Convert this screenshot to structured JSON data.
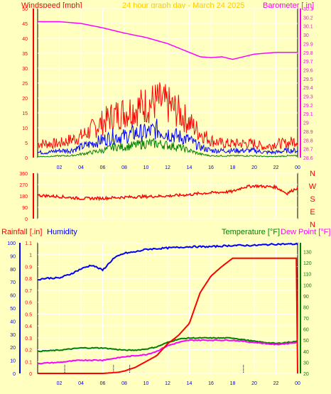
{
  "header": {
    "left_title": "Windspeed [mph]",
    "center_title": "24 hour graph day - March 24 2025",
    "right_title": "Barometer [ in]"
  },
  "bottom_header": {
    "rainfall": "Rainfall [.in]",
    "humidity": "Humidity",
    "temperature": "Temperature [°F]",
    "dewpoint": "Dew Point [°F]"
  },
  "direction_labels": [
    "N",
    "W",
    "S",
    "E",
    "N"
  ],
  "colors": {
    "background": "#ffffc0",
    "windspeed": "#ff0000",
    "wind_avg": "#0000ff",
    "wind_low": "#008000",
    "barometer": "#ff00ff",
    "direction": "#ff0000",
    "rainfall": "#ff0000",
    "humidity": "#0000ff",
    "temperature": "#008000",
    "dewpoint": "#ff00ff",
    "grid": "#ffffff"
  },
  "chart_data": [
    {
      "type": "line",
      "title": "24 hour graph day - March 24 2025",
      "x_ticks": [
        "02",
        "04",
        "06",
        "08",
        "10",
        "12",
        "14",
        "16",
        "18",
        "20",
        "22",
        "00"
      ],
      "y_left": {
        "label": "Windspeed [mph]",
        "ticks": [
          "0",
          "5",
          "10",
          "15",
          "20",
          "25",
          "30",
          "35",
          "40",
          "45",
          "50"
        ],
        "ylim": [
          0,
          50
        ]
      },
      "y_right": {
        "label": "Barometer [ in]",
        "ticks": [
          "28.6",
          "28.7",
          "28.8",
          "28.9",
          "29",
          "29.1",
          "29.2",
          "29.3",
          "29.4",
          "29.5",
          "29.6",
          "29.7",
          "29.8",
          "29.9",
          "30",
          "30.1",
          "30.2",
          "30.3"
        ],
        "ylim": [
          28.6,
          30.3
        ]
      },
      "series": [
        {
          "name": "Barometer [ in]",
          "axis": "right",
          "x": [
            0,
            2,
            4,
            6,
            8,
            10,
            12,
            14,
            15,
            16,
            17,
            18,
            19,
            20,
            22,
            24
          ],
          "values": [
            30.15,
            30.15,
            30.13,
            30.08,
            30.02,
            29.97,
            29.9,
            29.8,
            29.75,
            29.74,
            29.75,
            29.72,
            29.75,
            29.78,
            29.8,
            29.8
          ]
        },
        {
          "name": "Windspeed gust",
          "axis": "left",
          "x": [
            0,
            1,
            2,
            3,
            4,
            5,
            6,
            7,
            8,
            9,
            10,
            11,
            12,
            13,
            14,
            15,
            16,
            17,
            18,
            19,
            20,
            21,
            22,
            23,
            24
          ],
          "values": [
            4,
            4,
            4,
            5,
            6,
            8,
            10,
            12,
            13,
            14,
            15,
            16,
            15,
            13,
            10,
            7,
            5,
            4,
            4,
            4,
            4,
            3,
            4,
            4,
            5
          ]
        },
        {
          "name": "Windspeed average",
          "axis": "left",
          "x": [
            0,
            1,
            2,
            3,
            4,
            5,
            6,
            7,
            8,
            9,
            10,
            11,
            12,
            13,
            14,
            15,
            16,
            17,
            18,
            19,
            20,
            21,
            22,
            23,
            24
          ],
          "values": [
            1.5,
            1.5,
            2,
            2,
            3,
            4,
            5,
            6,
            6,
            7,
            7,
            8,
            7,
            6,
            5,
            3,
            2,
            2,
            2,
            2,
            2,
            1.5,
            1.5,
            2,
            2
          ]
        },
        {
          "name": "Windspeed low",
          "axis": "left",
          "x": [
            0,
            1,
            2,
            3,
            4,
            5,
            6,
            7,
            8,
            9,
            10,
            11,
            12,
            13,
            14,
            15,
            16,
            17,
            18,
            19,
            20,
            21,
            22,
            23,
            24
          ],
          "values": [
            0.3,
            0.3,
            0.5,
            0.5,
            1,
            1.5,
            2,
            3,
            3,
            3.5,
            4,
            4,
            3.5,
            3,
            2,
            1,
            0.5,
            0.5,
            0.5,
            0.5,
            0.5,
            0.3,
            0.3,
            0.5,
            0.5
          ]
        }
      ]
    },
    {
      "type": "line",
      "y_left": {
        "ticks": [
          "0",
          "90",
          "180",
          "270",
          "360"
        ],
        "ylim": [
          0,
          360
        ]
      },
      "y_right_labels": [
        "N",
        "W",
        "S",
        "E",
        "N"
      ],
      "series": [
        {
          "name": "Wind direction",
          "x": [
            0,
            2,
            4,
            6,
            8,
            10,
            12,
            14,
            15,
            16,
            18,
            19,
            20,
            22,
            23,
            24
          ],
          "values": [
            185,
            175,
            160,
            162,
            170,
            175,
            180,
            190,
            200,
            205,
            215,
            250,
            260,
            250,
            200,
            245
          ]
        }
      ]
    },
    {
      "type": "line",
      "x_ticks": [
        "02",
        "04",
        "06",
        "08",
        "10",
        "12",
        "14",
        "16",
        "18",
        "20",
        "22",
        "00"
      ],
      "y_left": {
        "label": "Humidity",
        "ticks": [
          "0",
          "10",
          "20",
          "30",
          "40",
          "50",
          "60",
          "70",
          "80",
          "90",
          "100"
        ],
        "ylim": [
          0,
          100
        ]
      },
      "y_left_rain": {
        "label": "Rainfall [.in]",
        "ticks": [
          "0",
          "0.1",
          "0.2",
          "0.3",
          "0.4",
          "0.5",
          "0.6",
          "0.7",
          "0.8",
          "0.9",
          "1",
          "1.1"
        ],
        "ylim": [
          0,
          1.1
        ]
      },
      "y_right": {
        "label": "Temperature [°F]",
        "ticks": [
          "20",
          "30",
          "40",
          "50",
          "60",
          "70",
          "80",
          "90",
          "100",
          "110",
          "120",
          "130"
        ],
        "ylim": [
          20,
          138
        ]
      },
      "series": [
        {
          "name": "Humidity",
          "axis": "left",
          "x": [
            0,
            1,
            2,
            3,
            4,
            5,
            6,
            7,
            8,
            9,
            10,
            12,
            14,
            16,
            18,
            20,
            22,
            24
          ],
          "values": [
            72,
            73,
            73,
            76,
            80,
            83,
            79,
            88,
            92,
            93,
            95,
            96,
            97,
            97,
            98,
            98,
            99,
            99
          ]
        },
        {
          "name": "Rainfall [.in]",
          "axis": "rain",
          "x": [
            0,
            6,
            7.5,
            8,
            9,
            10,
            11,
            12,
            13,
            14,
            14.5,
            15,
            16,
            17,
            18,
            20,
            23.9,
            24
          ],
          "values": [
            0,
            0,
            0.01,
            0.02,
            0.05,
            0.1,
            0.15,
            0.25,
            0.32,
            0.42,
            0.55,
            0.68,
            0.82,
            0.9,
            0.97,
            0.97,
            0.97,
            0
          ]
        },
        {
          "name": "Temperature [°F]",
          "axis": "right",
          "x": [
            0,
            2,
            4,
            6,
            8,
            9,
            10,
            11,
            12,
            13,
            14,
            16,
            18,
            20,
            22,
            24
          ],
          "values": [
            40,
            41,
            43,
            43,
            41,
            41,
            42,
            44,
            48,
            51,
            52,
            52,
            52,
            49,
            47,
            49
          ]
        },
        {
          "name": "Dew Point [°F]",
          "axis": "right",
          "x": [
            0,
            2,
            4,
            6,
            8,
            9,
            10,
            11,
            12,
            13,
            14,
            16,
            18,
            20,
            22,
            24
          ],
          "values": [
            29,
            30,
            32,
            32,
            35,
            36,
            37,
            40,
            45,
            48,
            50,
            50,
            50,
            48,
            46,
            48
          ]
        }
      ]
    }
  ]
}
